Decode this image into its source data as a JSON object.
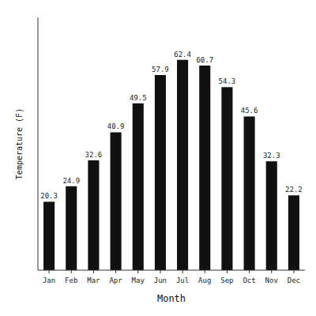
{
  "chart_data": {
    "type": "bar",
    "categories": [
      "Jan",
      "Feb",
      "Mar",
      "Apr",
      "May",
      "Jun",
      "Jul",
      "Aug",
      "Sep",
      "Oct",
      "Nov",
      "Dec"
    ],
    "values": [
      20.3,
      24.9,
      32.6,
      40.9,
      49.5,
      57.9,
      62.4,
      60.7,
      54.3,
      45.6,
      32.3,
      22.2
    ],
    "color": "#111111",
    "x_label": "Month",
    "y_label": "Temperature (F)",
    "ylim": [
      0,
      75
    ],
    "yticks": [],
    "tick_labels": "x",
    "data_labels": true,
    "grid": false
  }
}
